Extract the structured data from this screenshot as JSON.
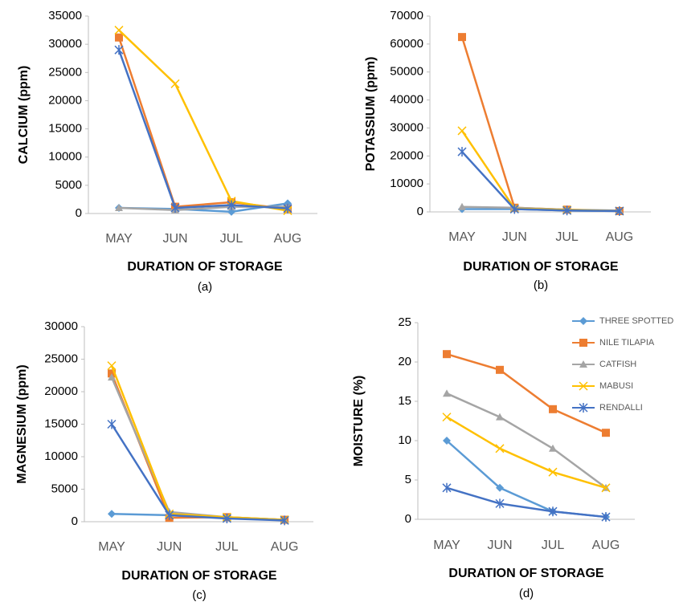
{
  "chart_data": [
    {
      "type": "line",
      "y_label": "CALCIUM (ppm)",
      "x_label": "DURATION OF STORAGE",
      "caption": "(a)",
      "categories": [
        "MAY",
        "JUN",
        "JUL",
        "AUG"
      ],
      "ylim": [
        0,
        35000
      ],
      "yticks": [
        0,
        5000,
        10000,
        15000,
        20000,
        25000,
        30000,
        35000
      ],
      "series": [
        {
          "color": "#5b9bd5",
          "marker": "diamond",
          "values": [
            1000,
            800,
            300,
            1800
          ]
        },
        {
          "color": "#ed7d31",
          "marker": "square",
          "values": [
            31200,
            1200,
            2000,
            800
          ]
        },
        {
          "color": "#a5a5a5",
          "marker": "triangle",
          "values": [
            1000,
            600,
            1200,
            1200
          ]
        },
        {
          "color": "#ffc000",
          "marker": "cross",
          "values": [
            32500,
            23000,
            2200,
            500
          ]
        },
        {
          "color": "#4472c4",
          "marker": "star",
          "values": [
            29000,
            1000,
            1500,
            900
          ]
        }
      ]
    },
    {
      "type": "line",
      "y_label": "POTASSIUM (ppm)",
      "x_label": "DURATION OF STORAGE",
      "caption": "(b)",
      "categories": [
        "MAY",
        "JUN",
        "JUL",
        "AUG"
      ],
      "ylim": [
        0,
        70000
      ],
      "yticks": [
        0,
        10000,
        20000,
        30000,
        40000,
        50000,
        60000,
        70000
      ],
      "series": [
        {
          "color": "#5b9bd5",
          "marker": "diamond",
          "values": [
            1000,
            1000,
            500,
            300
          ]
        },
        {
          "color": "#ed7d31",
          "marker": "square",
          "values": [
            62500,
            1500,
            800,
            300
          ]
        },
        {
          "color": "#a5a5a5",
          "marker": "triangle",
          "values": [
            1800,
            1500,
            800,
            500
          ]
        },
        {
          "color": "#ffc000",
          "marker": "cross",
          "values": [
            29000,
            1200,
            700,
            300
          ]
        },
        {
          "color": "#4472c4",
          "marker": "star",
          "values": [
            21500,
            1000,
            500,
            300
          ]
        }
      ]
    },
    {
      "type": "line",
      "y_label": "MAGNESIUM (ppm)",
      "x_label": "DURATION OF STORAGE",
      "caption": "(c)",
      "categories": [
        "MAY",
        "JUN",
        "JUL",
        "AUG"
      ],
      "ylim": [
        0,
        30000
      ],
      "yticks": [
        0,
        5000,
        10000,
        15000,
        20000,
        25000,
        30000
      ],
      "series": [
        {
          "color": "#5b9bd5",
          "marker": "diamond",
          "values": [
            1200,
            1000,
            600,
            300
          ]
        },
        {
          "color": "#ed7d31",
          "marker": "square",
          "values": [
            22800,
            600,
            700,
            300
          ]
        },
        {
          "color": "#a5a5a5",
          "marker": "triangle",
          "values": [
            22200,
            1500,
            700,
            300
          ]
        },
        {
          "color": "#ffc000",
          "marker": "cross",
          "values": [
            24000,
            1200,
            700,
            300
          ]
        },
        {
          "color": "#4472c4",
          "marker": "star",
          "values": [
            15000,
            1000,
            500,
            200
          ]
        }
      ]
    },
    {
      "type": "line",
      "y_label": "MOISTURE (%)",
      "x_label": "DURATION OF STORAGE",
      "caption": "(d)",
      "categories": [
        "MAY",
        "JUN",
        "JUL",
        "AUG"
      ],
      "ylim": [
        0,
        25
      ],
      "yticks": [
        0,
        5,
        10,
        15,
        20,
        25
      ],
      "legend": "upper right",
      "series": [
        {
          "name": "THREE SPOTTED",
          "color": "#5b9bd5",
          "marker": "diamond",
          "values": [
            10,
            4,
            1,
            0.3
          ]
        },
        {
          "name": "NILE TILAPIA",
          "color": "#ed7d31",
          "marker": "square",
          "values": [
            21,
            19,
            14,
            11
          ]
        },
        {
          "name": "CATFISH",
          "color": "#a5a5a5",
          "marker": "triangle",
          "values": [
            16,
            13,
            9,
            4
          ]
        },
        {
          "name": "MABUSI",
          "color": "#ffc000",
          "marker": "cross",
          "values": [
            13,
            9,
            6,
            4
          ]
        },
        {
          "name": "RENDALLI",
          "color": "#4472c4",
          "marker": "star",
          "values": [
            4,
            2,
            1,
            0.3
          ]
        }
      ]
    }
  ]
}
